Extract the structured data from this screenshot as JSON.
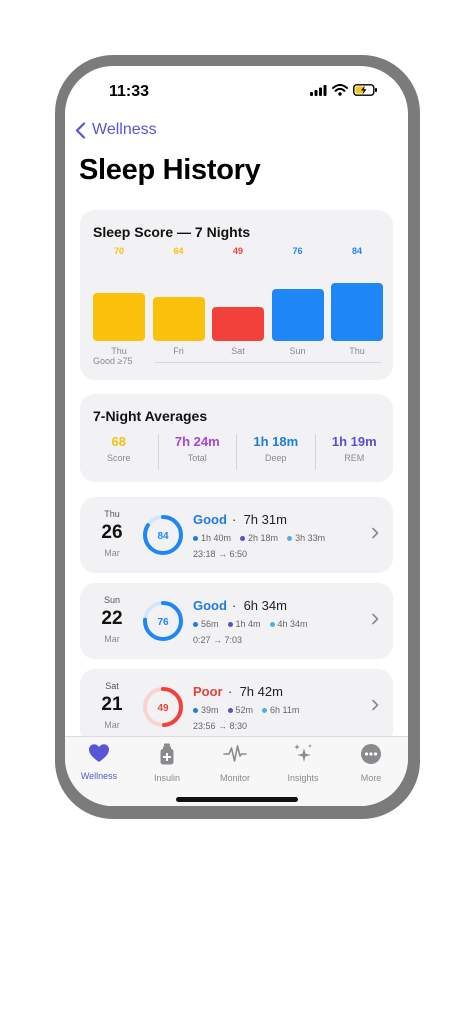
{
  "status": {
    "time": "11:33"
  },
  "nav": {
    "back_label": "Wellness"
  },
  "page": {
    "title": "Sleep History"
  },
  "score_chart": {
    "title": "Sleep Score — 7 Nights",
    "good_label": "Good ≥75",
    "colors": {
      "good": "#1e86f5",
      "fair": "#f9c00c",
      "poor": "#f2403a"
    }
  },
  "chart_data": {
    "type": "bar",
    "title": "Sleep Score — 7 Nights",
    "categories": [
      "Thu",
      "Fri",
      "Sat",
      "Sun",
      "Thu"
    ],
    "values": [
      70,
      64,
      49,
      76,
      84
    ],
    "colors": [
      "#f9c00c",
      "#f9c00c",
      "#f2403a",
      "#1e86f5",
      "#1e86f5"
    ],
    "threshold": {
      "label": "Good ≥75",
      "value": 75
    }
  },
  "averages": {
    "title": "7-Night Averages",
    "items": [
      {
        "value": "68",
        "label": "Score",
        "color": "#f2c311"
      },
      {
        "value": "7h 24m",
        "label": "Total",
        "color": "#a845d9"
      },
      {
        "value": "1h 18m",
        "label": "Deep",
        "color": "#1e7be0"
      },
      {
        "value": "1h 19m",
        "label": "REM",
        "color": "#5a4fcf"
      }
    ]
  },
  "nights": [
    {
      "dow": "Thu",
      "day": "26",
      "month": "Mar",
      "score": "84",
      "score_value": 84,
      "quality": "Good",
      "quality_color": "#1e7be0",
      "ring_color": "#1e86f5",
      "duration": "7h 31m",
      "deep": "1h 40m",
      "rem": "2h 18m",
      "light": "3h 33m",
      "times": "23:18 → 6:50"
    },
    {
      "dow": "Sun",
      "day": "22",
      "month": "Mar",
      "score": "76",
      "score_value": 76,
      "quality": "Good",
      "quality_color": "#1e7be0",
      "ring_color": "#1e86f5",
      "duration": "6h 34m",
      "deep": "56m",
      "rem": "1h 4m",
      "light": "4h 34m",
      "times": "0:27 → 7:03"
    },
    {
      "dow": "Sat",
      "day": "21",
      "month": "Mar",
      "score": "49",
      "score_value": 49,
      "quality": "Poor",
      "quality_color": "#e5413a",
      "ring_color": "#f2403a",
      "duration": "7h 42m",
      "deep": "39m",
      "rem": "52m",
      "light": "6h 11m",
      "times": "23:56 → 8:30"
    }
  ],
  "stage_colors": {
    "deep": "#1e7be0",
    "rem": "#5a4fcf",
    "light": "#4fb0e0"
  },
  "tabs": [
    {
      "label": "Wellness",
      "icon": "heart-icon",
      "active": true
    },
    {
      "label": "Insulin",
      "icon": "insulin-pen-icon",
      "active": false
    },
    {
      "label": "Monitor",
      "icon": "waveform-icon",
      "active": false
    },
    {
      "label": "Insights",
      "icon": "sparkles-icon",
      "active": false
    },
    {
      "label": "More",
      "icon": "more-icon",
      "active": false
    }
  ],
  "accent_color": "#5856d6"
}
